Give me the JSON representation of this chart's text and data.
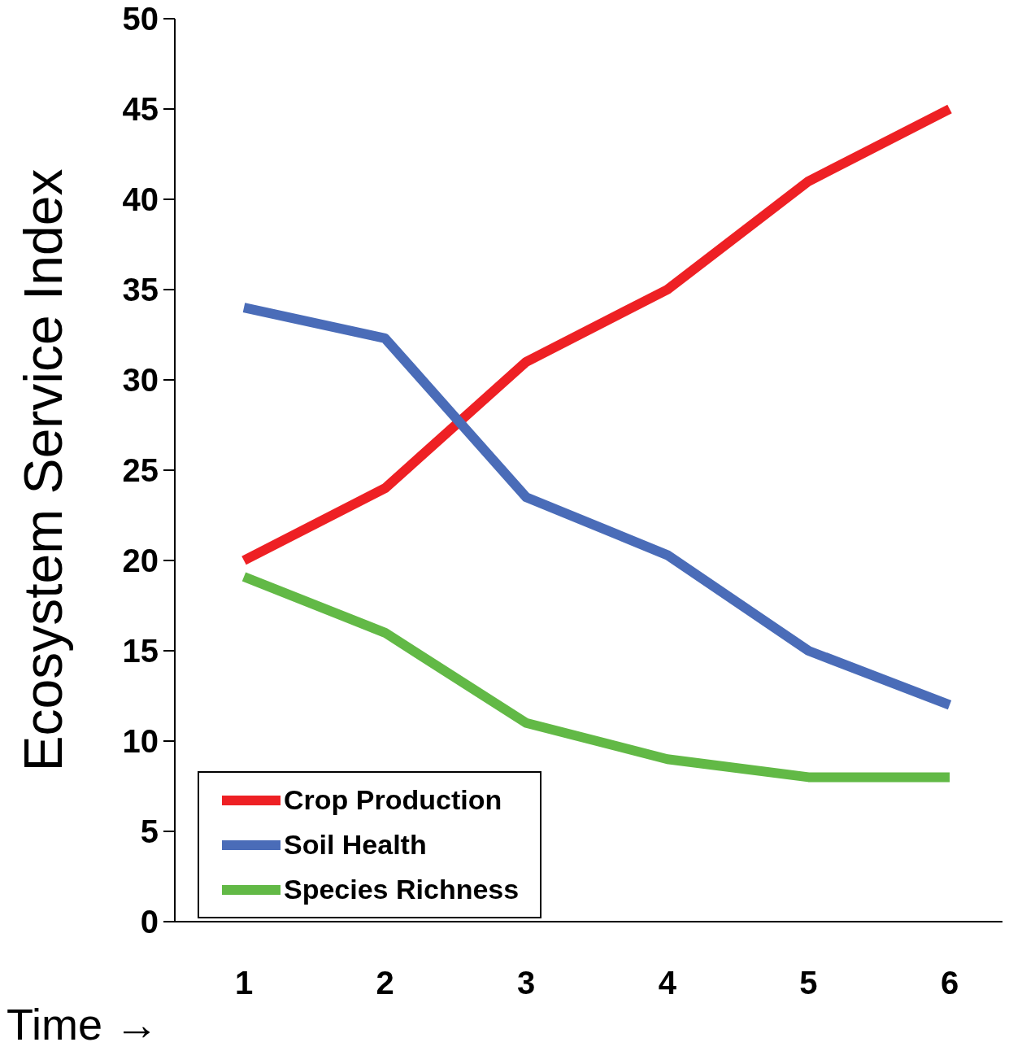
{
  "chart_data": {
    "type": "line",
    "ylabel": "Ecosystem Service Index",
    "xlabel": "Time →",
    "categories": [
      "1",
      "2",
      "3",
      "4",
      "5",
      "6"
    ],
    "series": [
      {
        "name": "Crop Production",
        "color": "#ee2024",
        "values": [
          20,
          24,
          31,
          35,
          41,
          45
        ]
      },
      {
        "name": "Soil Health",
        "color": "#4a6cb8",
        "values": [
          34,
          32.3,
          23.5,
          20.3,
          15,
          12
        ]
      },
      {
        "name": "Species Richness",
        "color": "#62b946",
        "values": [
          19.1,
          16,
          11,
          9,
          8,
          8
        ]
      }
    ],
    "ylim": [
      0,
      50
    ],
    "yticks": [
      0,
      5,
      10,
      15,
      20,
      25,
      30,
      35,
      40,
      45,
      50
    ],
    "grid": false,
    "legend": "bottom left",
    "marker": "none",
    "line_style": "solid"
  }
}
